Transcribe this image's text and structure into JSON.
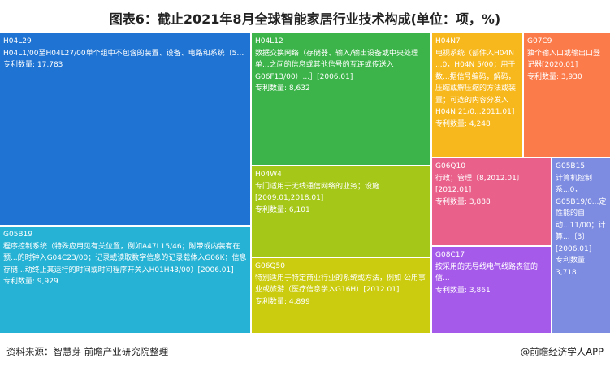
{
  "chart_data": {
    "type": "treemap",
    "title": "图表6：截止2021年8月全球智能家居行业技术构成(单位：项，%)",
    "count_label": "专利数量: ",
    "items": [
      {
        "code": "H04L29",
        "desc": "H04L1/00至H04L27/00单个组中不包含的装置、设备、电路和系统〔5〕[200...",
        "value": 17783,
        "value_text": "17,783",
        "color": "#1f73d2"
      },
      {
        "code": "G05B19",
        "desc": "程序控制系统（特殊应用见有关位置，例如A47L15/46；附带或内装有在预...的时钟入G04C23/00；记录或读取数字信息的记录载体入G06K；信息存储...动终止其运行的时间或时间程序开关入H01H43/00）[2006.01]",
        "value": 9929,
        "value_text": "9,929",
        "color": "#26b2d4"
      },
      {
        "code": "H04L12",
        "desc": "数据交换网络（存储器、输入/输出设备或中央处理单...之间的信息或其他信号的互连或传送入G06F13/00）...］[2006.01]",
        "value": 8632,
        "value_text": "8,632",
        "color": "#3db44a"
      },
      {
        "code": "H04W4",
        "desc": "专门适用于无线通信网络的业务；设施[2009.01,2018.01]",
        "value": 6101,
        "value_text": "6,101",
        "color": "#a4c718"
      },
      {
        "code": "G06Q50",
        "desc": "特别适用于特定商业行业的系统或方法，例如 公用事业或旅游（医疗信息学入G16H）[2012.01]",
        "value": 4899,
        "value_text": "4,899",
        "color": "#cbcc10"
      },
      {
        "code": "H04N7",
        "desc": "电视系统（部件入H04N ...0，H04N 5/00；用于数...据信号编码，解码，压缩或解压缩的方法或装置；可选的内容分发入H04N 21/0...2011.01]",
        "value": 4248,
        "value_text": "4,248",
        "color": "#f7b81e"
      },
      {
        "code": "G07C9",
        "desc": "独个输入口或输出口登记器[2020.01]",
        "value": 3930,
        "value_text": "3,930",
        "color": "#fb7b4b"
      },
      {
        "code": "G06Q10",
        "desc": "行政；管理〔8,2012.01〕[2012.01]",
        "value": 3888,
        "value_text": "3,888",
        "color": "#e9618b"
      },
      {
        "code": "G08C17",
        "desc": "按采用的无导线电气线路表征的信...",
        "value": 3861,
        "value_text": "3,861",
        "color": "#a65aea"
      },
      {
        "code": "G05B15",
        "desc": "计算机控制系...0，G05B19/0...定性能的自动...11/00；计算...〔3〕[2006.01]",
        "value": 3718,
        "value_text": "3,718",
        "color": "#7d8be1"
      }
    ]
  },
  "footer": {
    "source": "资料来源：智慧芽 前瞻产业研究院整理",
    "brand": "@前瞻经济学人APP"
  }
}
